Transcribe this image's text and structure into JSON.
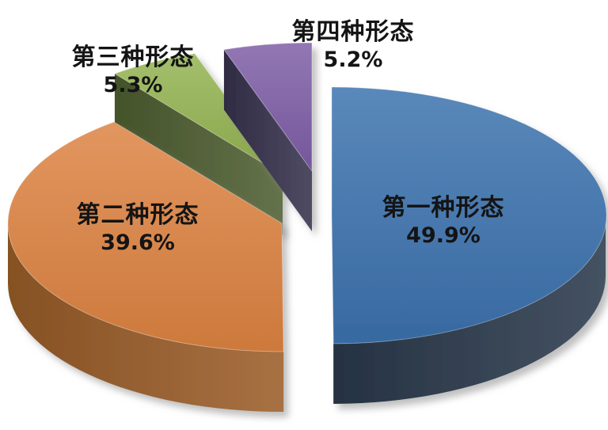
{
  "chart_data": {
    "type": "pie",
    "variant": "3d-exploded",
    "title": "",
    "legend": "none",
    "background": "#ffffff",
    "unit": "percent",
    "total": 100,
    "start_angle_deg": 0,
    "direction": "clockwise",
    "categories": [
      "第一种形态",
      "第二种形态",
      "第三种形态",
      "第四种形态"
    ],
    "values": [
      49.9,
      39.6,
      5.3,
      5.2
    ],
    "slices": [
      {
        "label": "第一种形态",
        "value": 49.9,
        "display": "49.9%",
        "color_top": "#3B71AD",
        "color_side": "#2B3A4D"
      },
      {
        "label": "第二种形态",
        "value": 39.6,
        "display": "39.6%",
        "color_top": "#DC8241",
        "color_side": "#9C5E29"
      },
      {
        "label": "第三种形态",
        "value": 5.3,
        "display": "5.3%",
        "color_top": "#93B350",
        "color_side": "#4F5F31"
      },
      {
        "label": "第四种形态",
        "value": 5.2,
        "display": "5.2%",
        "color_top": "#7D5DA6",
        "color_side": "#37324E"
      }
    ],
    "label_text_color": "#141414"
  }
}
